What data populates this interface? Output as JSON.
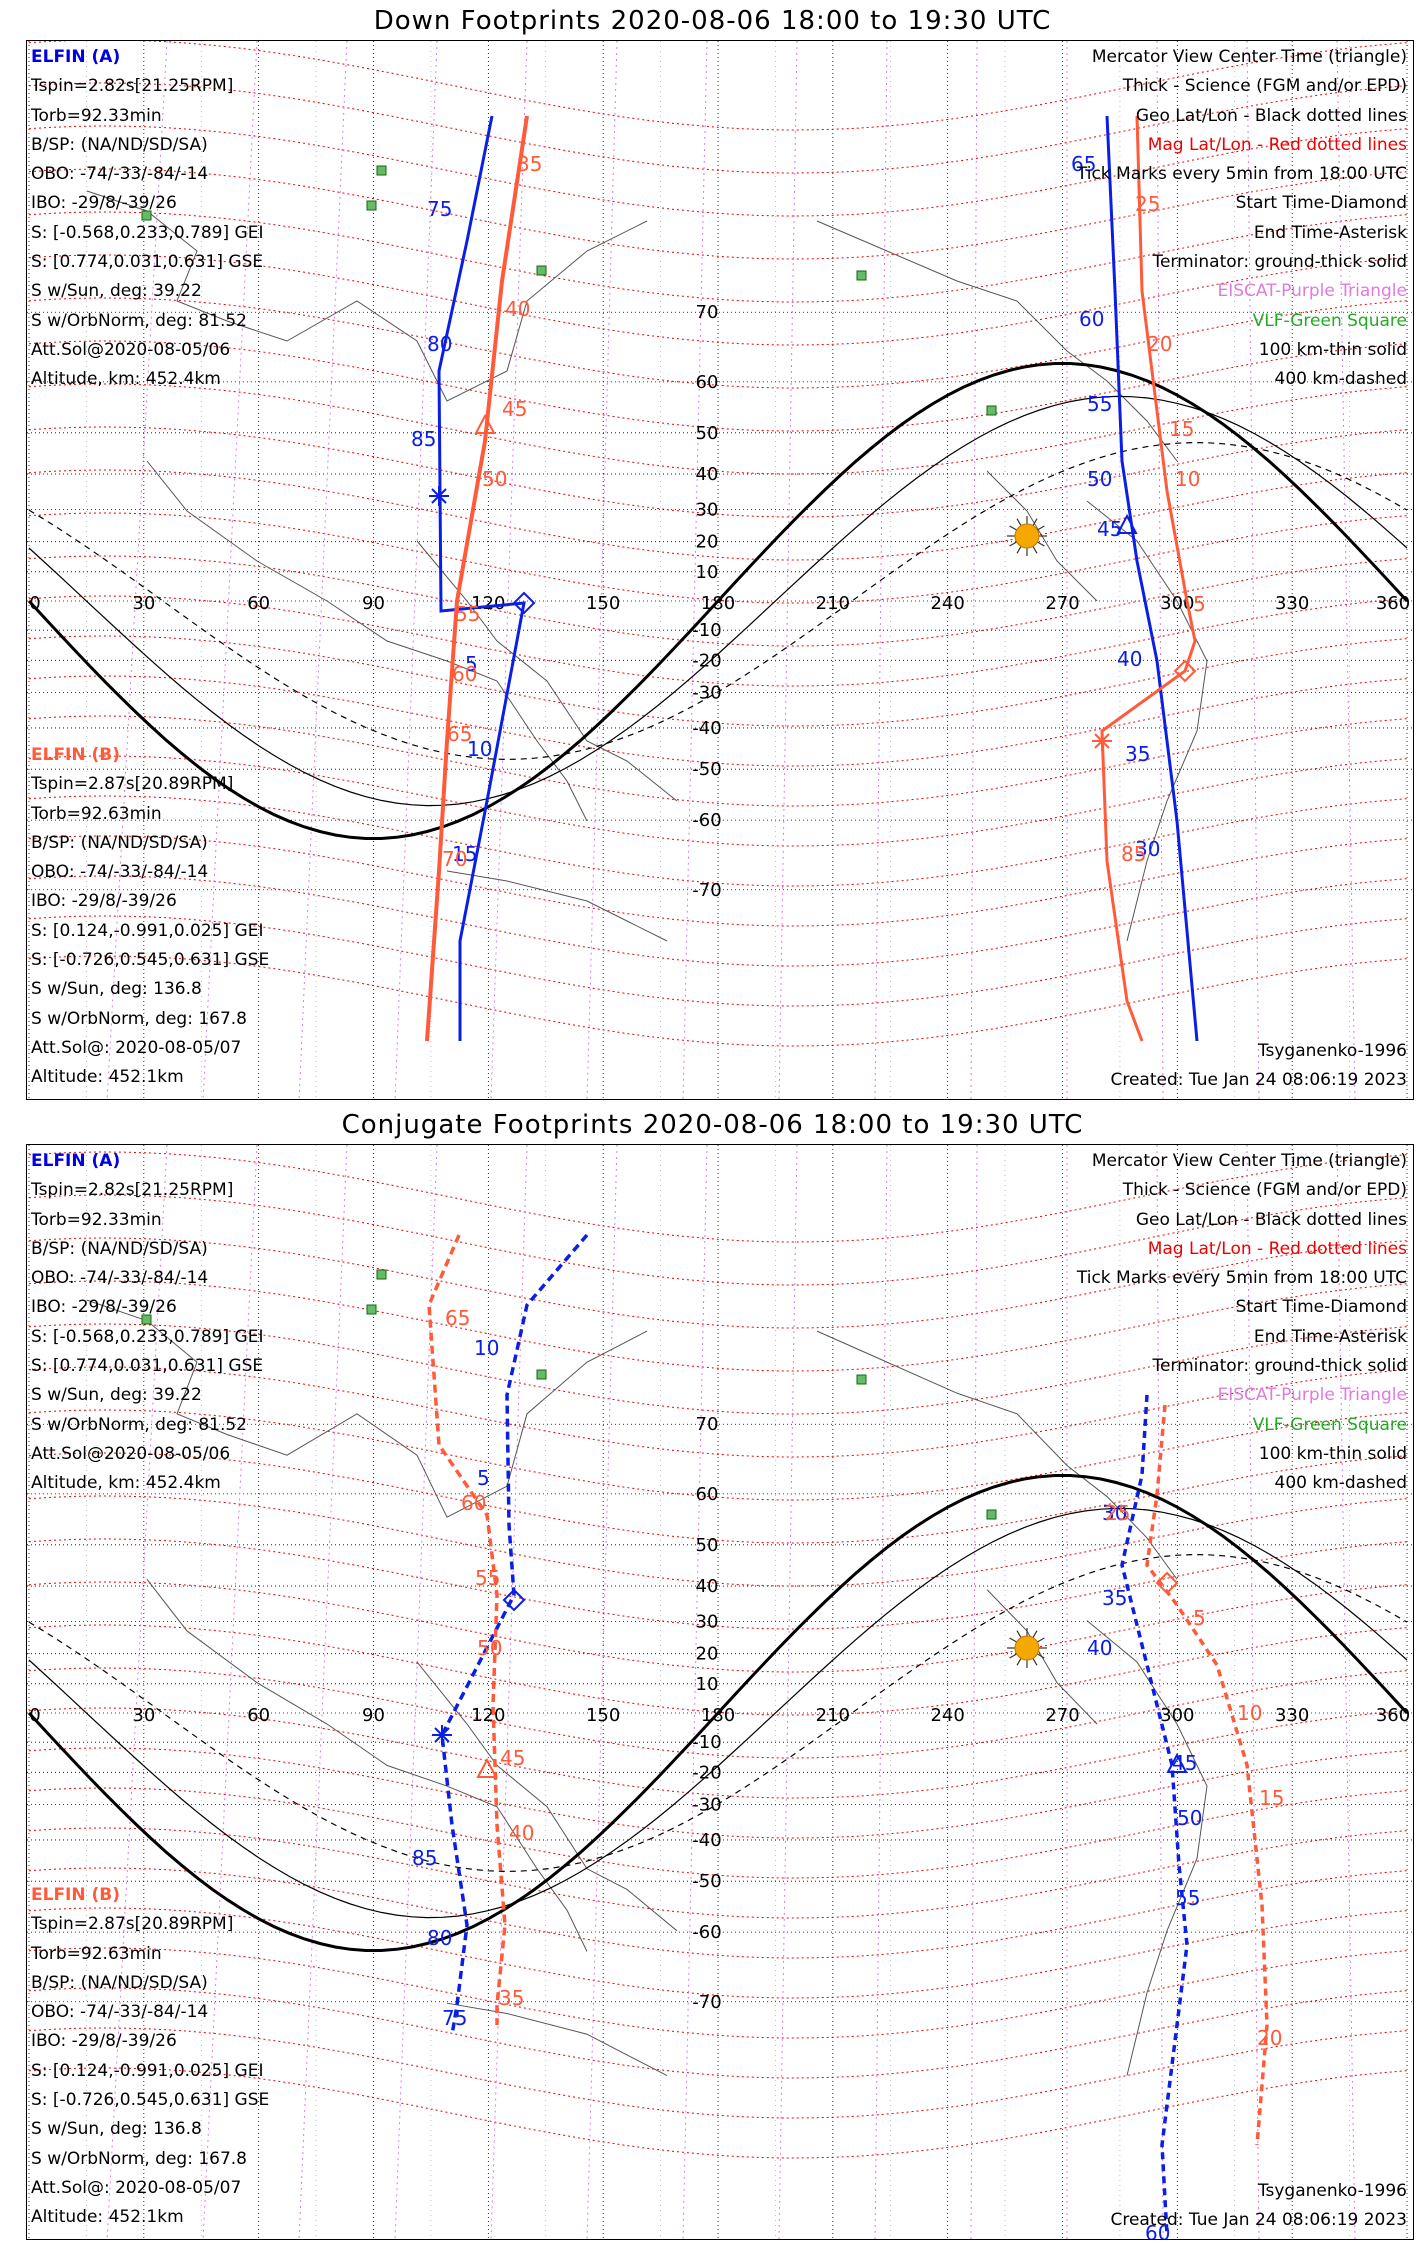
{
  "panels": [
    {
      "id": "down",
      "title": "Down Footprints 2020-08-06 18:00 to 19:30 UTC",
      "elfin_a": {
        "header": "ELFIN (A)",
        "lines": [
          "Tspin=2.82s[21.25RPM]",
          "Torb=92.33min",
          "B/SP: (NA/ND/SD/SA)",
          "OBO: -74/-33/-84/-14",
          "IBO: -29/8/-39/26",
          "S: [-0.568,0.233,0.789] GEI",
          "S: [0.774,0.031,0.631] GSE",
          "S w/Sun, deg: 39.22",
          "S w/OrbNorm, deg: 81.52",
          "Att.Sol@2020-08-05/06",
          "Altitude, km: 452.4km"
        ]
      },
      "elfin_b": {
        "header": "ELFIN (B)",
        "lines": [
          "Tspin=2.87s[20.89RPM]",
          "Torb=92.63min",
          "B/SP: (NA/ND/SD/SA)",
          "OBO: -74/-33/-84/-14",
          "IBO: -29/8/-39/26",
          "S: [0.124,-0.991,0.025] GEI",
          "S: [-0.726,0.545,0.631] GSE",
          "S w/Sun, deg: 136.8",
          "S w/OrbNorm, deg: 167.8",
          "Att.Sol@: 2020-08-05/07",
          "Altitude: 452.1km"
        ]
      },
      "legend": [
        "Mercator View Center Time (triangle)",
        "Thick - Science (FGM and/or EPD)",
        "Geo Lat/Lon - Black dotted lines",
        "Mag Lat/Lon - Red dotted lines",
        "Tick Marks every 5min from 18:00 UTC",
        "Start Time-Diamond",
        "End Time-Asterisk",
        "Terminator: ground-thick solid",
        "EISCAT-Purple Triangle",
        "VLF-Green Square",
        "100 km-thin solid",
        "400 km-dashed"
      ],
      "model": "Tsyganenko-1996",
      "created": "Created: Tue Jan 24 08:06:19 2023",
      "track_a_labels": [
        "75",
        "80",
        "85",
        "5",
        "10",
        "15",
        "65",
        "60",
        "55",
        "50",
        "45",
        "40",
        "35",
        "30"
      ],
      "track_b_labels": [
        "35",
        "40",
        "45",
        "50",
        "55",
        "60",
        "65",
        "70",
        "25",
        "20",
        "15",
        "10",
        "5",
        "85"
      ]
    },
    {
      "id": "conjugate",
      "title": "Conjugate Footprints 2020-08-06 18:00 to 19:30 UTC",
      "elfin_a": {
        "header": "ELFIN (A)",
        "lines": [
          "Tspin=2.82s[21.25RPM]",
          "Torb=92.33min",
          "B/SP: (NA/ND/SD/SA)",
          "OBO: -74/-33/-84/-14",
          "IBO: -29/8/-39/26",
          "S: [-0.568,0.233,0.789] GEI",
          "S: [0.774,0.031,0.631] GSE",
          "S w/Sun, deg: 39.22",
          "S w/OrbNorm, deg: 81.52",
          "Att.Sol@2020-08-05/06",
          "Altitude, km: 452.4km"
        ]
      },
      "elfin_b": {
        "header": "ELFIN (B)",
        "lines": [
          "Tspin=2.87s[20.89RPM]",
          "Torb=92.63min",
          "B/SP: (NA/ND/SD/SA)",
          "OBO: -74/-33/-84/-14",
          "IBO: -29/8/-39/26",
          "S: [0.124,-0.991,0.025] GEI",
          "S: [-0.726,0.545,0.631] GSE",
          "S w/Sun, deg: 136.8",
          "S w/OrbNorm, deg: 167.8",
          "Att.Sol@: 2020-08-05/07",
          "Altitude: 452.1km"
        ]
      },
      "legend": [
        "Mercator View Center Time (triangle)",
        "Thick - Science (FGM and/or EPD)",
        "Geo Lat/Lon - Black dotted lines",
        "Mag Lat/Lon - Red dotted lines",
        "Tick Marks every 5min from 18:00 UTC",
        "Start Time-Diamond",
        "End Time-Asterisk",
        "Terminator: ground-thick solid",
        "EISCAT-Purple Triangle",
        "VLF-Green Square",
        "100 km-thin solid",
        "400 km-dashed"
      ],
      "model": "Tsyganenko-1996",
      "created": "Created: Tue Jan 24 08:06:19 2023",
      "track_a_labels": [
        "10",
        "5",
        "85",
        "80",
        "75",
        "30",
        "35",
        "40",
        "45",
        "50",
        "55",
        "60"
      ],
      "track_b_labels": [
        "65",
        "60",
        "55",
        "50",
        "45",
        "40",
        "35",
        "25",
        "5",
        "10",
        "15",
        "20"
      ]
    }
  ],
  "axes": {
    "lon_ticks": [
      "0",
      "30",
      "60",
      "90",
      "120",
      "150",
      "180",
      "210",
      "240",
      "270",
      "300",
      "330",
      "360"
    ],
    "lat_ticks": [
      "70",
      "60",
      "50",
      "40",
      "30",
      "20",
      "10",
      "-10",
      "-20",
      "-30",
      "-40",
      "-50",
      "-60",
      "-70"
    ]
  },
  "colors": {
    "elfin_a": "#0a1ee6",
    "elfin_b": "#ff5b3a",
    "mag_grid": "#ee0000",
    "geo_grid": "#000000",
    "eiscat": "#e07ae0",
    "vlf": "#22aa22",
    "sun": "#f5a800"
  }
}
